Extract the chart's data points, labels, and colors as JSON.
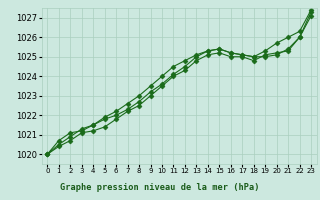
{
  "title": "Graphe pression niveau de la mer (hPa)",
  "x": [
    0,
    1,
    2,
    3,
    4,
    5,
    6,
    7,
    8,
    9,
    10,
    11,
    12,
    13,
    14,
    15,
    16,
    17,
    18,
    19,
    20,
    21,
    22,
    23
  ],
  "series1": [
    1020.0,
    1020.4,
    1020.7,
    1021.1,
    1021.2,
    1021.4,
    1021.8,
    1022.2,
    1022.5,
    1023.0,
    1023.5,
    1024.0,
    1024.3,
    1024.8,
    1025.1,
    1025.2,
    1025.0,
    1025.0,
    1024.8,
    1025.1,
    1025.2,
    1025.3,
    1026.0,
    1027.3
  ],
  "series2": [
    1020.0,
    1020.7,
    1021.1,
    1021.2,
    1021.5,
    1021.8,
    1022.0,
    1022.3,
    1022.7,
    1023.2,
    1023.6,
    1024.1,
    1024.5,
    1025.0,
    1025.3,
    1025.4,
    1025.2,
    1025.1,
    1025.0,
    1025.0,
    1025.1,
    1025.4,
    1026.0,
    1027.1
  ],
  "series3": [
    1020.0,
    1020.5,
    1020.9,
    1021.3,
    1021.5,
    1021.9,
    1022.2,
    1022.6,
    1023.0,
    1023.5,
    1024.0,
    1024.5,
    1024.8,
    1025.1,
    1025.3,
    1025.4,
    1025.2,
    1025.1,
    1025.0,
    1025.3,
    1025.7,
    1026.0,
    1026.3,
    1027.4
  ],
  "ylim": [
    1019.5,
    1027.5
  ],
  "yticks": [
    1020,
    1021,
    1022,
    1023,
    1024,
    1025,
    1026,
    1027
  ],
  "xlim": [
    -0.5,
    23.5
  ],
  "bg_color": "#cce8df",
  "line_color": "#1a6b1a",
  "grid_color": "#aacfbf",
  "title_color": "#1a5c1a",
  "marker": "D",
  "markersize": 2.5,
  "linewidth": 0.8,
  "ytick_fontsize": 6,
  "xtick_fontsize": 5,
  "title_fontsize": 6.2
}
